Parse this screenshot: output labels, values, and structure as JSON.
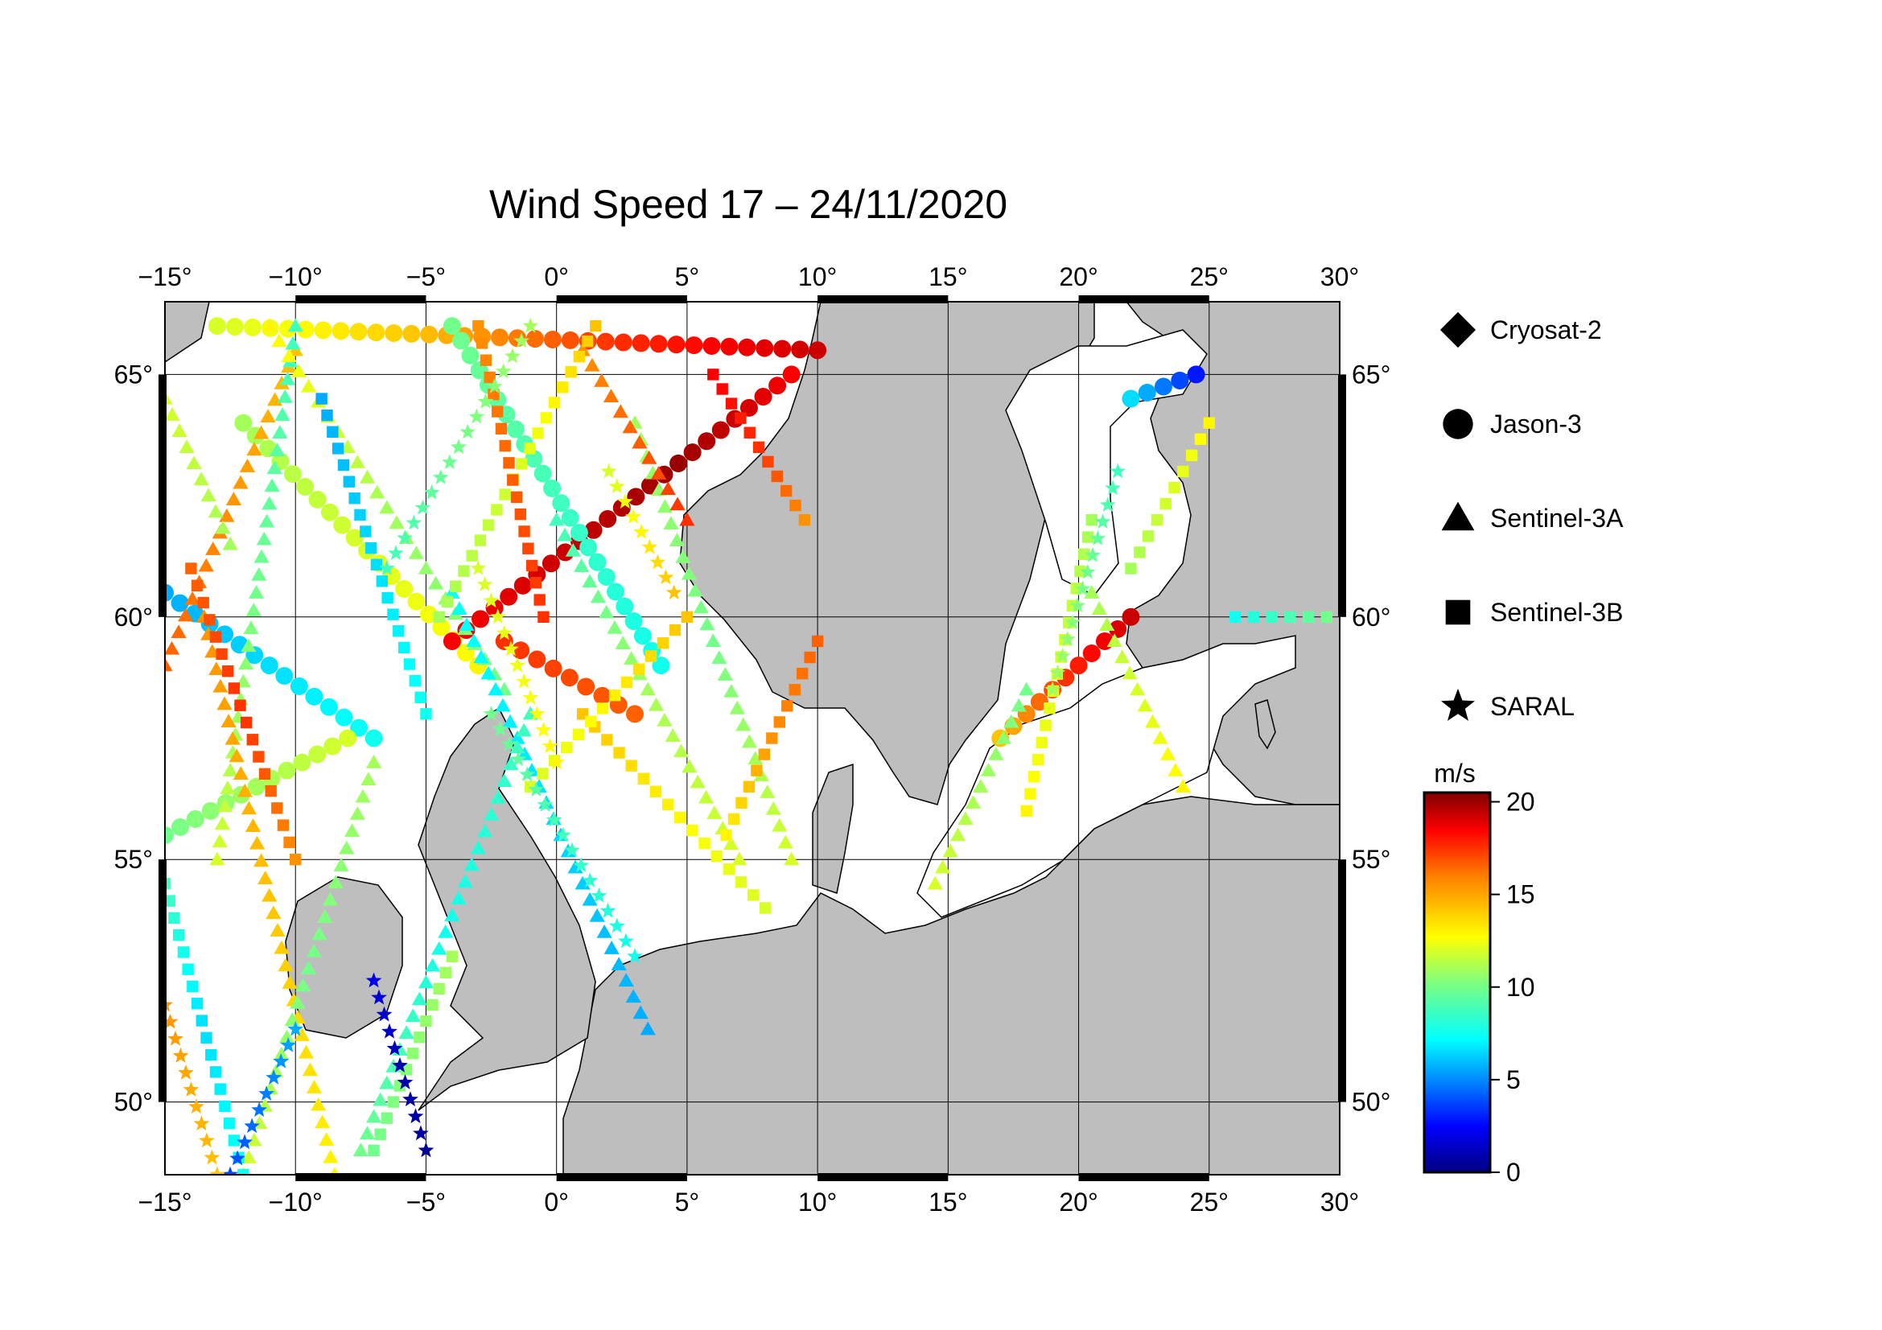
{
  "title": "Wind Speed 17 – 24/11/2020",
  "map": {
    "lon_range": [
      -15,
      30
    ],
    "lat_range": [
      48.5,
      66.5
    ],
    "lon_ticks": [
      -15,
      -10,
      -5,
      0,
      5,
      10,
      15,
      20,
      25,
      30
    ],
    "lat_ticks": [
      50,
      55,
      60,
      65
    ],
    "lon_labels": [
      "−15°",
      "−10°",
      "−5°",
      "0°",
      "5°",
      "10°",
      "15°",
      "20°",
      "25°",
      "30°"
    ],
    "lat_labels": [
      "50°",
      "55°",
      "60°",
      "65°"
    ],
    "land_color": "#bebebe",
    "sea_color": "#ffffff"
  },
  "legend": {
    "items": [
      {
        "label": "Cryosat-2",
        "symbol": "diamond"
      },
      {
        "label": "Jason-3",
        "symbol": "circle"
      },
      {
        "label": "Sentinel-3A",
        "symbol": "triangle"
      },
      {
        "label": "Sentinel-3B",
        "symbol": "square"
      },
      {
        "label": "SARAL",
        "symbol": "star"
      }
    ]
  },
  "colorbar": {
    "unit": "m/s",
    "min": 0,
    "max": 20.5,
    "ticks": [
      0,
      5,
      10,
      15,
      20
    ],
    "tick_labels": [
      "0",
      "5",
      "10",
      "15",
      "20"
    ],
    "colormap": "jet"
  },
  "tracks": [
    {
      "sat": "circle",
      "start": [
        -13.0,
        66.0
      ],
      "end": [
        10.0,
        65.5
      ],
      "wind": [
        12,
        14,
        17,
        19
      ]
    },
    {
      "sat": "circle",
      "start": [
        -12.0,
        64.0
      ],
      "end": [
        -3.0,
        59.0
      ],
      "wind": [
        11,
        12,
        13
      ]
    },
    {
      "sat": "circle",
      "start": [
        -4.0,
        59.5
      ],
      "end": [
        9.0,
        65.0
      ],
      "wind": [
        18,
        19,
        20,
        18
      ]
    },
    {
      "sat": "circle",
      "start": [
        -4.0,
        66.0
      ],
      "end": [
        4.0,
        59.0
      ],
      "wind": [
        10,
        9,
        8
      ]
    },
    {
      "sat": "circle",
      "start": [
        -15.0,
        60.5
      ],
      "end": [
        -7.0,
        57.5
      ],
      "wind": [
        6,
        7,
        8
      ]
    },
    {
      "sat": "circle",
      "start": [
        -15.0,
        55.5
      ],
      "end": [
        -8.0,
        57.5
      ],
      "wind": [
        10,
        11,
        12
      ]
    },
    {
      "sat": "circle",
      "start": [
        17.0,
        57.5
      ],
      "end": [
        22.0,
        60.0
      ],
      "wind": [
        14,
        17,
        19
      ]
    },
    {
      "sat": "circle",
      "start": [
        22.0,
        64.5
      ],
      "end": [
        24.5,
        65.0
      ],
      "wind": [
        7,
        5,
        3
      ]
    },
    {
      "sat": "circle",
      "start": [
        -2.0,
        59.5
      ],
      "end": [
        3.0,
        58.0
      ],
      "wind": [
        17,
        16
      ]
    },
    {
      "sat": "triangle",
      "start": [
        -15.0,
        59.0
      ],
      "end": [
        -10.0,
        65.5
      ],
      "wind": [
        16,
        15,
        14
      ]
    },
    {
      "sat": "triangle",
      "start": [
        -13.0,
        55.0
      ],
      "end": [
        -10.0,
        66.0
      ],
      "wind": [
        12,
        10,
        9
      ]
    },
    {
      "sat": "triangle",
      "start": [
        -11.0,
        66.0
      ],
      "end": [
        -2.0,
        58.5
      ],
      "wind": [
        13,
        11,
        10
      ]
    },
    {
      "sat": "triangle",
      "start": [
        -4.0,
        60.5
      ],
      "end": [
        3.5,
        51.5
      ],
      "wind": [
        8,
        7,
        6
      ]
    },
    {
      "sat": "triangle",
      "start": [
        0.0,
        62.0
      ],
      "end": [
        7.0,
        55.0
      ],
      "wind": [
        9,
        11,
        12
      ]
    },
    {
      "sat": "triangle",
      "start": [
        3.0,
        64.0
      ],
      "end": [
        9.0,
        55.0
      ],
      "wind": [
        11,
        10,
        12
      ]
    },
    {
      "sat": "triangle",
      "start": [
        -1.0,
        58.0
      ],
      "end": [
        -7.5,
        49.0
      ],
      "wind": [
        9,
        8,
        10
      ]
    },
    {
      "sat": "triangle",
      "start": [
        -13.5,
        60.0
      ],
      "end": [
        -8.5,
        48.5
      ],
      "wind": [
        15,
        14,
        13
      ]
    },
    {
      "sat": "triangle",
      "start": [
        -7.0,
        57.0
      ],
      "end": [
        -12.0,
        48.5
      ],
      "wind": [
        11,
        10,
        12
      ]
    },
    {
      "sat": "triangle",
      "start": [
        14.5,
        54.5
      ],
      "end": [
        18.0,
        58.5
      ],
      "wind": [
        12,
        11,
        10
      ]
    },
    {
      "sat": "triangle",
      "start": [
        20.5,
        60.5
      ],
      "end": [
        24.0,
        56.5
      ],
      "wind": [
        11,
        12,
        13
      ]
    },
    {
      "sat": "triangle",
      "start": [
        5.0,
        62.0
      ],
      "end": [
        1.0,
        65.5
      ],
      "wind": [
        17,
        16,
        15
      ]
    },
    {
      "sat": "triangle",
      "start": [
        -15.0,
        64.5
      ],
      "end": [
        -12.5,
        61.5
      ],
      "wind": [
        12,
        11
      ]
    },
    {
      "sat": "square",
      "start": [
        -9.0,
        64.5
      ],
      "end": [
        -5.0,
        58.0
      ],
      "wind": [
        6,
        7,
        8
      ]
    },
    {
      "sat": "square",
      "start": [
        -4.5,
        60.0
      ],
      "end": [
        1.5,
        66.0
      ],
      "wind": [
        11,
        12,
        14
      ]
    },
    {
      "sat": "square",
      "start": [
        -3.0,
        66.0
      ],
      "end": [
        -0.5,
        60.0
      ],
      "wind": [
        15,
        16,
        17
      ]
    },
    {
      "sat": "square",
      "start": [
        1.0,
        58.0
      ],
      "end": [
        8.0,
        54.0
      ],
      "wind": [
        14,
        13,
        12
      ]
    },
    {
      "sat": "square",
      "start": [
        -1.0,
        56.5
      ],
      "end": [
        5.0,
        60.0
      ],
      "wind": [
        12,
        13,
        14
      ]
    },
    {
      "sat": "square",
      "start": [
        6.5,
        55.5
      ],
      "end": [
        10.0,
        59.5
      ],
      "wind": [
        13,
        15,
        16
      ]
    },
    {
      "sat": "square",
      "start": [
        -12.0,
        48.5
      ],
      "end": [
        -15.0,
        54.5
      ],
      "wind": [
        8,
        7,
        9
      ]
    },
    {
      "sat": "square",
      "start": [
        -14.0,
        61.0
      ],
      "end": [
        -10.0,
        55.0
      ],
      "wind": [
        16,
        17,
        15
      ]
    },
    {
      "sat": "square",
      "start": [
        18.0,
        56.0
      ],
      "end": [
        20.5,
        62.0
      ],
      "wind": [
        13,
        12,
        11
      ]
    },
    {
      "sat": "square",
      "start": [
        22.0,
        61.0
      ],
      "end": [
        25.0,
        64.0
      ],
      "wind": [
        11,
        12,
        13
      ]
    },
    {
      "sat": "square",
      "start": [
        26.0,
        60.0
      ],
      "end": [
        29.5,
        60.0
      ],
      "wind": [
        8,
        9,
        10
      ]
    },
    {
      "sat": "square",
      "start": [
        -7.0,
        49.0
      ],
      "end": [
        -4.0,
        53.0
      ],
      "wind": [
        10,
        11
      ]
    },
    {
      "sat": "square",
      "start": [
        6.0,
        65.0
      ],
      "end": [
        9.5,
        62.0
      ],
      "wind": [
        18,
        17,
        15
      ]
    },
    {
      "sat": "star",
      "start": [
        -12.5,
        48.5
      ],
      "end": [
        -10.0,
        51.5
      ],
      "wind": [
        4,
        5,
        6
      ]
    },
    {
      "sat": "star",
      "start": [
        -15.0,
        52.0
      ],
      "end": [
        -13.0,
        48.5
      ],
      "wind": [
        15,
        14
      ]
    },
    {
      "sat": "star",
      "start": [
        -2.5,
        58.0
      ],
      "end": [
        3.0,
        53.0
      ],
      "wind": [
        10,
        9,
        8
      ]
    },
    {
      "sat": "star",
      "start": [
        -6.5,
        61.0
      ],
      "end": [
        -1.0,
        66.0
      ],
      "wind": [
        9,
        10,
        11
      ]
    },
    {
      "sat": "star",
      "start": [
        -3.0,
        61.0
      ],
      "end": [
        0.0,
        57.0
      ],
      "wind": [
        12,
        13
      ]
    },
    {
      "sat": "star",
      "start": [
        19.0,
        58.5
      ],
      "end": [
        21.5,
        63.0
      ],
      "wind": [
        11,
        10,
        9
      ]
    },
    {
      "sat": "star",
      "start": [
        -7.0,
        52.5
      ],
      "end": [
        -5.0,
        49.0
      ],
      "wind": [
        2,
        1,
        0.5
      ]
    },
    {
      "sat": "star",
      "start": [
        2.0,
        63.0
      ],
      "end": [
        4.5,
        60.5
      ],
      "wind": [
        12,
        14
      ]
    }
  ]
}
